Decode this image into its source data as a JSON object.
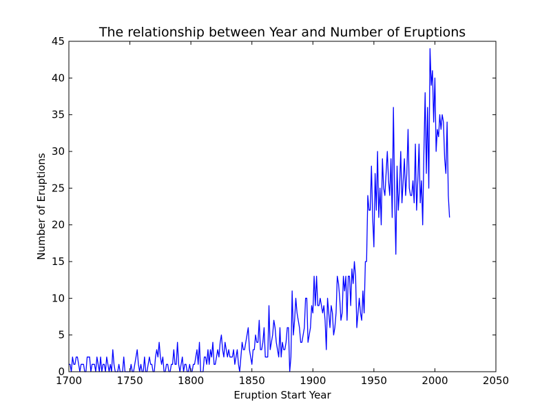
{
  "chart_data": {
    "type": "line",
    "title": "The relationship between Year and Number of Eruptions",
    "xlabel": "Eruption Start Year",
    "ylabel": "Number of Eruptions",
    "xlim": [
      1700,
      2050
    ],
    "ylim": [
      0,
      45
    ],
    "xticks": [
      1700,
      1750,
      1800,
      1850,
      1900,
      1950,
      2000,
      2050
    ],
    "yticks": [
      0,
      5,
      10,
      15,
      20,
      25,
      30,
      35,
      40,
      45
    ],
    "grid": false,
    "legend": "none",
    "series": [
      {
        "color": "#0000ff",
        "x_start": 1700,
        "x_step": 1,
        "values": [
          1,
          1,
          0,
          2,
          1,
          1,
          2,
          2,
          1,
          0,
          1,
          1,
          1,
          0,
          0,
          2,
          2,
          2,
          0,
          1,
          1,
          1,
          0,
          2,
          1,
          0,
          2,
          0,
          1,
          1,
          0,
          2,
          1,
          0,
          1,
          0,
          3,
          1,
          0,
          0,
          0,
          1,
          0,
          0,
          0,
          2,
          0,
          0,
          0,
          0,
          0,
          1,
          0,
          0,
          1,
          2,
          3,
          1,
          0,
          1,
          0,
          0,
          2,
          0,
          0,
          1,
          2,
          1,
          1,
          0,
          0,
          2,
          3,
          2,
          4,
          2,
          1,
          2,
          0,
          0,
          1,
          1,
          0,
          0,
          1,
          1,
          3,
          1,
          1,
          4,
          1,
          0,
          1,
          2,
          0,
          1,
          1,
          0,
          0,
          1,
          0,
          0,
          1,
          1,
          2,
          3,
          1,
          4,
          0,
          0,
          0,
          2,
          2,
          1,
          3,
          1,
          3,
          2,
          4,
          1,
          1,
          2,
          3,
          2,
          4,
          5,
          3,
          2,
          4,
          3,
          2,
          3,
          2,
          2,
          2,
          3,
          1,
          2,
          3,
          1,
          0,
          2,
          4,
          3,
          3,
          4,
          5,
          6,
          3,
          2,
          1,
          3,
          3,
          5,
          4,
          4,
          7,
          3,
          3,
          4,
          6,
          2,
          2,
          2,
          9,
          3,
          4,
          5,
          7,
          6,
          4,
          3,
          2,
          6,
          2,
          4,
          3,
          3,
          4,
          6,
          6,
          0,
          2,
          11,
          5,
          7,
          10,
          8,
          7,
          6,
          4,
          4,
          5,
          6,
          10,
          10,
          4,
          5,
          6,
          9,
          8,
          13,
          9,
          13,
          9,
          9,
          10,
          9,
          8,
          9,
          7,
          3,
          10,
          8,
          6,
          9,
          8,
          5,
          6,
          8,
          13,
          12,
          10,
          7,
          8,
          13,
          11,
          13,
          7,
          13,
          13,
          9,
          14,
          12,
          15,
          13,
          6,
          8,
          10,
          8,
          7,
          11,
          8,
          15,
          15,
          24,
          22,
          22,
          28,
          21,
          17,
          27,
          22,
          30,
          21,
          25,
          20,
          29,
          25,
          24,
          27,
          30,
          26,
          24,
          29,
          21,
          36,
          24,
          16,
          28,
          22,
          25,
          30,
          23,
          26,
          29,
          24,
          27,
          33,
          25,
          24,
          24,
          26,
          23,
          31,
          22,
          26,
          31,
          23,
          26,
          20,
          30,
          38,
          27,
          36,
          25,
          44,
          39,
          41,
          34,
          40,
          30,
          33,
          32,
          35,
          33,
          35,
          34,
          29,
          27,
          34,
          24,
          21
        ]
      }
    ]
  }
}
